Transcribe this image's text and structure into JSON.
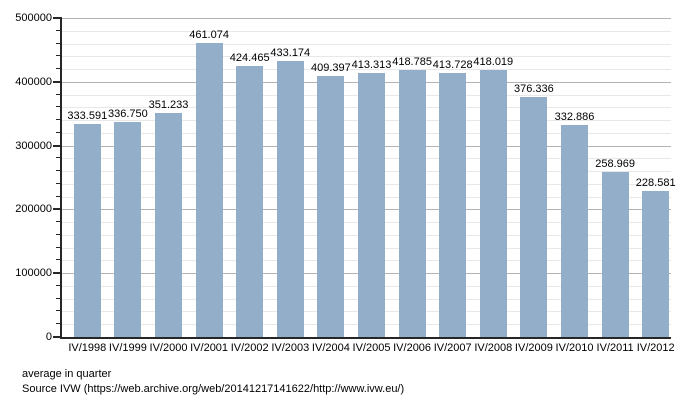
{
  "chart_data": {
    "type": "bar",
    "title": "",
    "categories": [
      "IV/1998",
      "IV/1999",
      "IV/2000",
      "IV/2001",
      "IV/2002",
      "IV/2003",
      "IV/2004",
      "IV/2005",
      "IV/2006",
      "IV/2007",
      "IV/2008",
      "IV/2009",
      "IV/2010",
      "IV/2011",
      "IV/2012"
    ],
    "values": [
      333591,
      336750,
      351233,
      461074,
      424465,
      433174,
      409397,
      413313,
      418785,
      413728,
      418019,
      376336,
      332886,
      258969,
      228581
    ],
    "value_labels": [
      "333.591",
      "336.750",
      "351.233",
      "461.074",
      "424.465",
      "433.174",
      "409.397",
      "413.313",
      "418.785",
      "413.728",
      "418.019",
      "376.336",
      "332.886",
      "258.969",
      "228.581"
    ],
    "xlabel": "",
    "ylabel": "",
    "ylim": [
      0,
      500000
    ],
    "y_major_step": 100000,
    "y_minor_step": 20000,
    "y_tick_labels": [
      "0",
      "100000",
      "200000",
      "300000",
      "400000",
      "500000"
    ],
    "grid": "horizontal-major-and-minor",
    "legend": "none",
    "colors": {
      "bar_fill": "#92aec9",
      "major_grid": "#b3b3b3",
      "minor_grid": "#e8e8e8",
      "axis": "#262626",
      "text": "#000000",
      "background": "#ffffff"
    }
  },
  "footnotes": {
    "line1": "average in quarter",
    "line2": "Source IVW (https://web.archive.org/web/20141217141622/http://www.ivw.eu/)"
  }
}
